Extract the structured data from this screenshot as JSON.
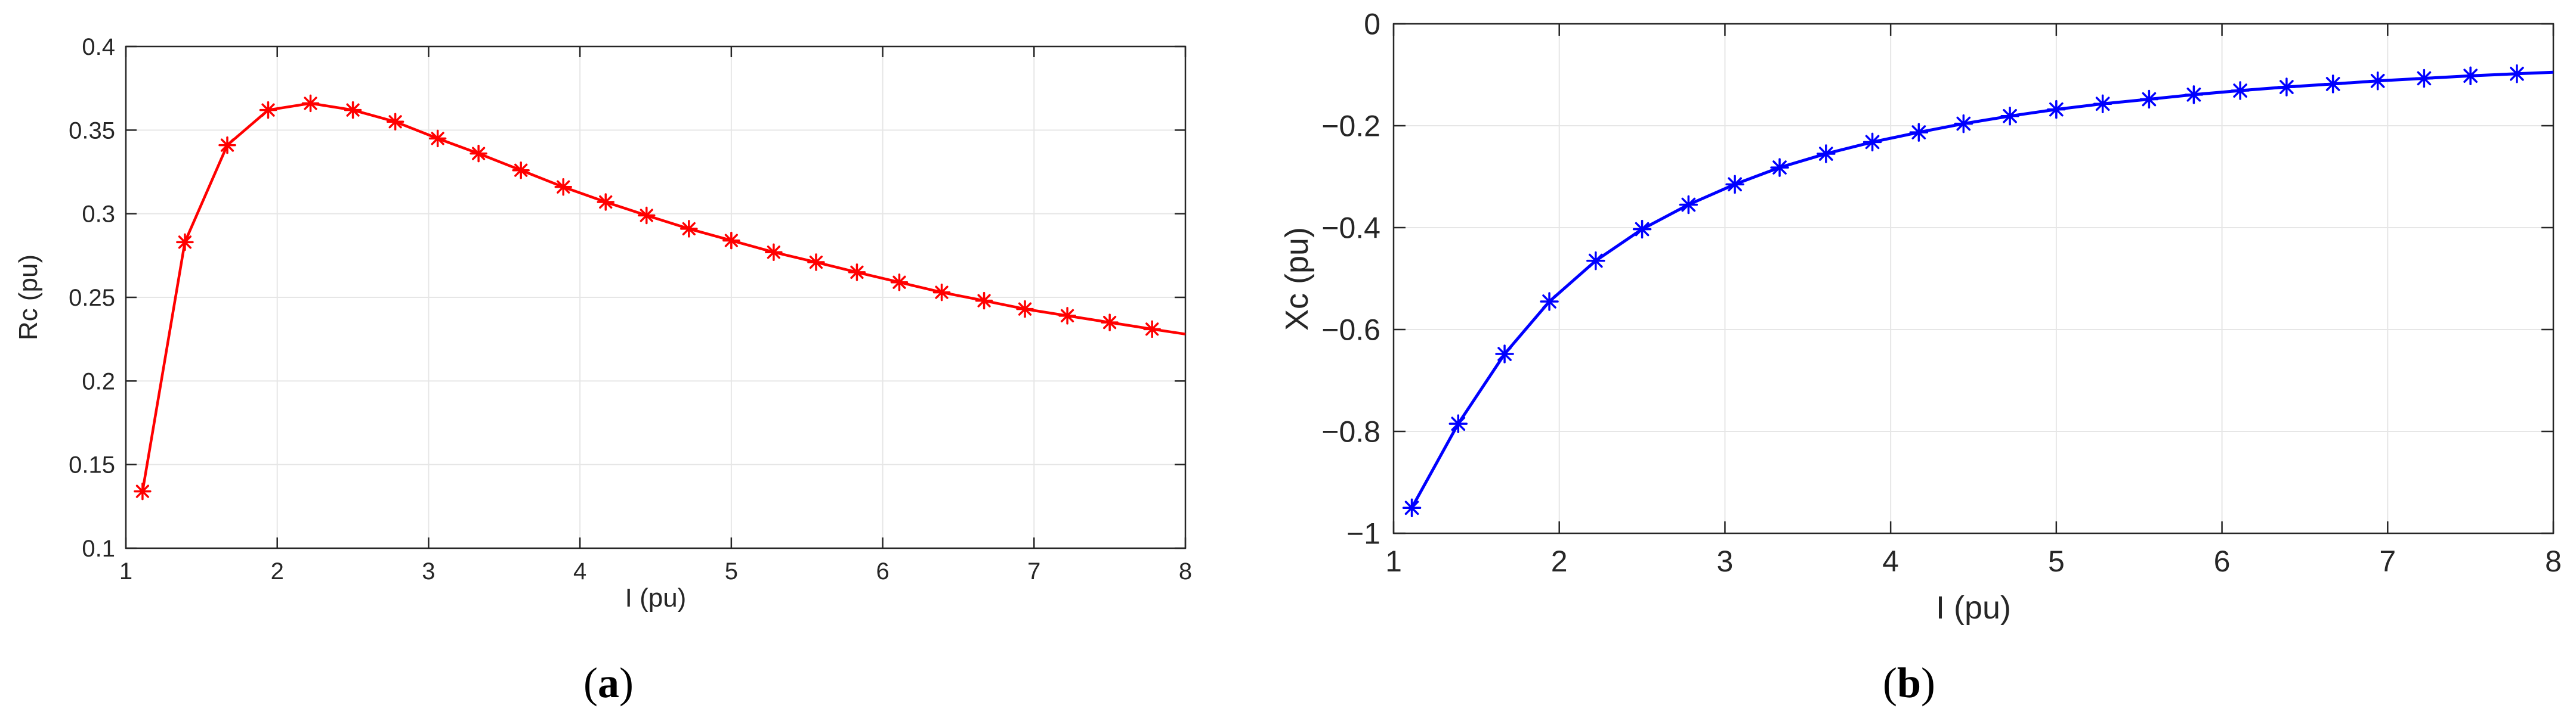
{
  "chart_data": [
    {
      "type": "line",
      "panel_label": "a",
      "xlabel": "I (pu)",
      "ylabel": "Rc (pu)",
      "xlim": [
        1,
        8
      ],
      "ylim": [
        0.1,
        0.4
      ],
      "xticks": [
        1,
        2,
        3,
        4,
        5,
        6,
        7,
        8
      ],
      "xtick_labels": [
        "1",
        "2",
        "3",
        "4",
        "5",
        "6",
        "7",
        "8"
      ],
      "yticks": [
        0.1,
        0.15,
        0.2,
        0.25,
        0.3,
        0.35,
        0.4
      ],
      "ytick_labels": [
        "0.1",
        "0.15",
        "0.2",
        "0.25",
        "0.3",
        "0.35",
        "0.4"
      ],
      "grid": true,
      "color": "#ff0000",
      "marker": "asterisk",
      "line_end": [
        8,
        0.228
      ],
      "x": [
        1.11,
        1.39,
        1.67,
        1.94,
        2.22,
        2.5,
        2.78,
        3.06,
        3.33,
        3.61,
        3.89,
        4.17,
        4.44,
        4.72,
        5.0,
        5.28,
        5.56,
        5.83,
        6.11,
        6.39,
        6.67,
        6.94,
        7.22,
        7.5,
        7.78
      ],
      "y": [
        0.134,
        0.283,
        0.341,
        0.362,
        0.366,
        0.362,
        0.355,
        0.345,
        0.336,
        0.326,
        0.316,
        0.307,
        0.299,
        0.291,
        0.284,
        0.277,
        0.271,
        0.265,
        0.259,
        0.253,
        0.248,
        0.243,
        0.239,
        0.235,
        0.231
      ]
    },
    {
      "type": "line",
      "panel_label": "b",
      "xlabel": "I (pu)",
      "ylabel": "Xc (pu)",
      "xlim": [
        1,
        8
      ],
      "ylim": [
        -1,
        0
      ],
      "xticks": [
        1,
        2,
        3,
        4,
        5,
        6,
        7,
        8
      ],
      "xtick_labels": [
        "1",
        "2",
        "3",
        "4",
        "5",
        "6",
        "7",
        "8"
      ],
      "yticks": [
        -1,
        -0.8,
        -0.6,
        -0.4,
        -0.2,
        0
      ],
      "ytick_labels": [
        "−1",
        "−0.8",
        "−0.6",
        "−0.4",
        "−0.2",
        "0"
      ],
      "grid": true,
      "color": "#0000ff",
      "marker": "asterisk",
      "line_end": [
        8,
        -0.095
      ],
      "x": [
        1.11,
        1.39,
        1.67,
        1.94,
        2.22,
        2.5,
        2.78,
        3.06,
        3.33,
        3.61,
        3.89,
        4.17,
        4.44,
        4.72,
        5.0,
        5.28,
        5.56,
        5.83,
        6.11,
        6.39,
        6.67,
        6.94,
        7.22,
        7.5,
        7.78
      ],
      "y": [
        -0.95,
        -0.785,
        -0.648,
        -0.545,
        -0.465,
        -0.403,
        -0.355,
        -0.315,
        -0.282,
        -0.255,
        -0.232,
        -0.213,
        -0.196,
        -0.181,
        -0.168,
        -0.157,
        -0.148,
        -0.139,
        -0.131,
        -0.124,
        -0.118,
        -0.112,
        -0.107,
        -0.102,
        -0.098
      ]
    }
  ]
}
